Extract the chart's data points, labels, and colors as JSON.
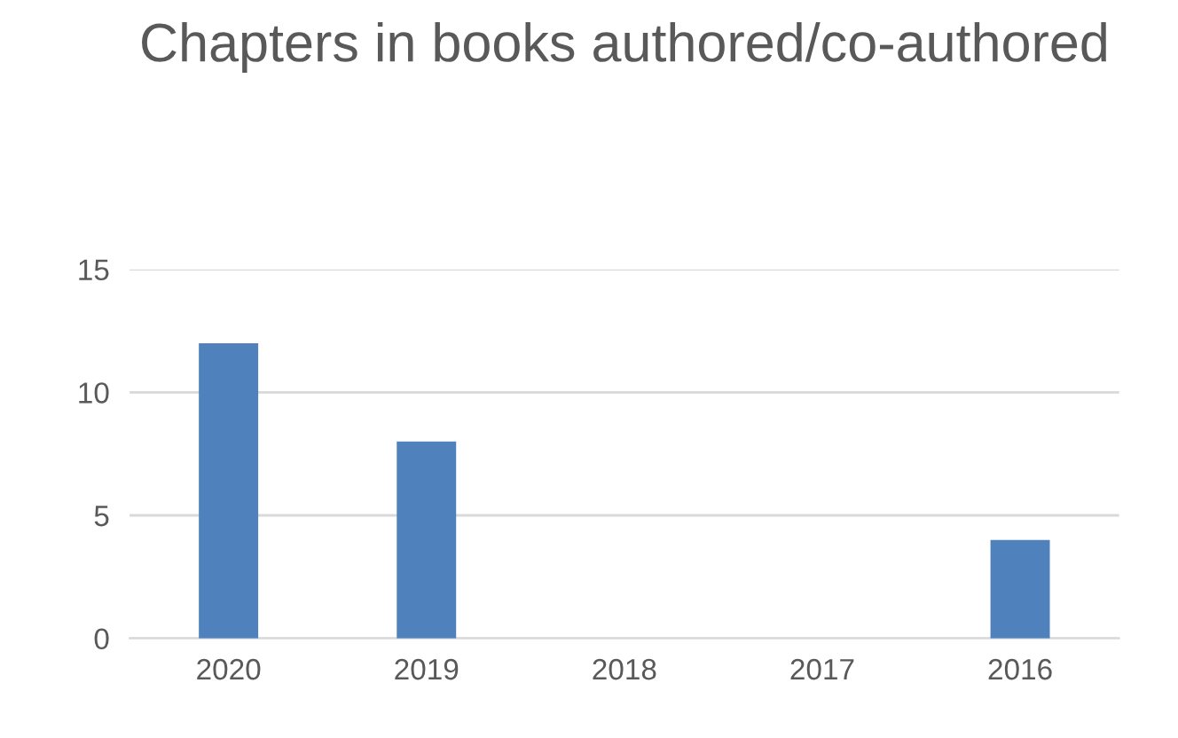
{
  "chart_data": {
    "type": "bar",
    "title": "Chapters in books authored/co-authored",
    "categories": [
      "2020",
      "2019",
      "2018",
      "2017",
      "2016"
    ],
    "values": [
      12,
      8,
      0,
      0,
      4
    ],
    "color": "#4f81bd",
    "ylim": [
      0,
      15
    ],
    "yticks": [
      0,
      5,
      10,
      15
    ],
    "grid": "y"
  }
}
